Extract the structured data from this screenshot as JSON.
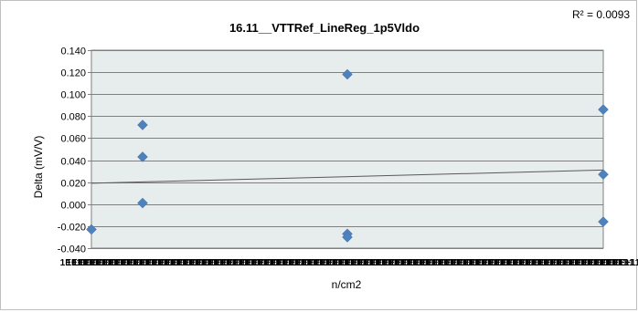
{
  "chart_data": {
    "type": "scatter",
    "title": "16.11__VTTRef_LineReg_1p5Vldo",
    "ylabel": "Delta (mV/V)",
    "xlabel": "n/cm2",
    "ylim": [
      -0.04,
      0.14
    ],
    "xlim": [
      0,
      1
    ],
    "y_ticks": [
      "0.140",
      "0.120",
      "0.100",
      "0.080",
      "0.060",
      "0.040",
      "0.020",
      "0.000",
      "-0.020",
      "-0.040"
    ],
    "x_tick_labels_overlapping": true,
    "grid": true,
    "legend": "none",
    "annotation": "R² = 0.0093",
    "marker_color": "#4f81bd",
    "plot_background": "#e7ecec",
    "series": [
      {
        "points": [
          {
            "x": 0.0,
            "y": -0.023
          },
          {
            "x": 0.1,
            "y": 0.072
          },
          {
            "x": 0.1,
            "y": 0.043
          },
          {
            "x": 0.1,
            "y": 0.001
          },
          {
            "x": 0.5,
            "y": 0.118
          },
          {
            "x": 0.5,
            "y": -0.027
          },
          {
            "x": 0.5,
            "y": -0.03
          },
          {
            "x": 1.0,
            "y": 0.086
          },
          {
            "x": 1.0,
            "y": 0.027
          },
          {
            "x": 1.0,
            "y": -0.016
          }
        ]
      }
    ],
    "trendline": {
      "type": "linear",
      "y_at_xmin": 0.019,
      "y_at_xmax": 0.031
    }
  }
}
